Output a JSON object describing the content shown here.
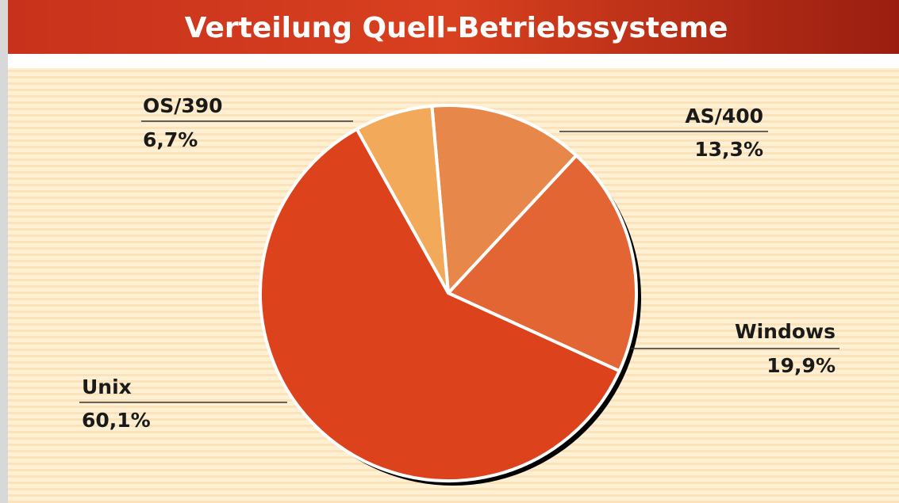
{
  "chart_data": {
    "type": "pie",
    "title": "Verteilung Quell-Betriebssysteme",
    "categories": [
      "AS/400",
      "Windows",
      "Unix",
      "OS/390"
    ],
    "values": [
      13.3,
      19.9,
      60.1,
      6.7
    ],
    "value_labels": [
      "13,3%",
      "19,9%",
      "60,1%",
      "6,7%"
    ],
    "colors": [
      "#e8874a",
      "#e36534",
      "#dc421c",
      "#f2a95a"
    ]
  }
}
